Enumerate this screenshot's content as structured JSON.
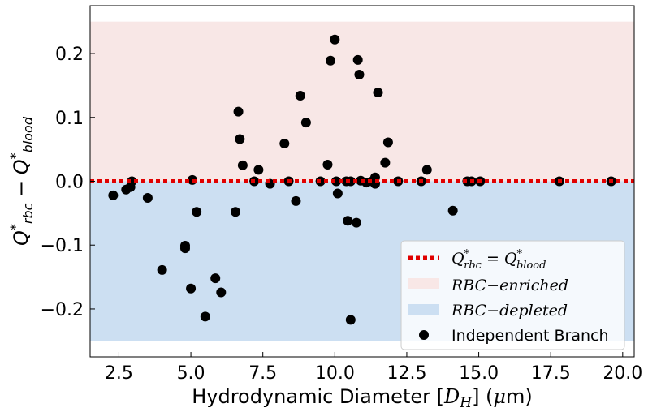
{
  "chart_data": {
    "type": "scatter",
    "xlabel": "Hydrodynamic Diameter [D_H] (μm)",
    "ylabel": "Q*_rbc − Q*_blood",
    "xlim": [
      1.5,
      20.4
    ],
    "ylim": [
      -0.275,
      0.275
    ],
    "xticks": [
      2.5,
      5.0,
      7.5,
      10.0,
      12.5,
      15.0,
      17.5,
      20.0
    ],
    "xtick_labels": [
      "2.5",
      "5.0",
      "7.5",
      "10.0",
      "12.5",
      "15.0",
      "17.5",
      "20.0"
    ],
    "yticks": [
      -0.2,
      -0.1,
      0.0,
      0.1,
      0.2
    ],
    "ytick_labels": [
      "−0.2",
      "−0.1",
      "0.0",
      "0.1",
      "0.2"
    ],
    "grid": false,
    "legend_placement": "lower-right",
    "colors": {
      "reference_line": "#e00000",
      "enriched_band": "#f8e7e6",
      "depleted_band": "#ccdff2",
      "points": "#000000"
    },
    "bands": [
      {
        "name": "RBC−enriched",
        "y_range": [
          0.0,
          0.25
        ]
      },
      {
        "name": "RBC−depleted",
        "y_range": [
          -0.25,
          0.0
        ]
      }
    ],
    "reference_line": {
      "name": "Q*_rbc = Q*_blood",
      "y": 0.0
    },
    "series": [
      {
        "name": "Independent Branch",
        "points": [
          {
            "x": 2.3,
            "y": -0.022
          },
          {
            "x": 2.75,
            "y": -0.013
          },
          {
            "x": 2.9,
            "y": -0.009
          },
          {
            "x": 2.95,
            "y": 0.0
          },
          {
            "x": 3.5,
            "y": -0.026
          },
          {
            "x": 4.0,
            "y": -0.139
          },
          {
            "x": 4.8,
            "y": -0.101
          },
          {
            "x": 4.8,
            "y": -0.105
          },
          {
            "x": 5.0,
            "y": -0.168
          },
          {
            "x": 5.05,
            "y": 0.002
          },
          {
            "x": 5.2,
            "y": -0.048
          },
          {
            "x": 5.5,
            "y": -0.212
          },
          {
            "x": 5.85,
            "y": -0.152
          },
          {
            "x": 6.05,
            "y": -0.174
          },
          {
            "x": 6.55,
            "y": -0.048
          },
          {
            "x": 6.65,
            "y": 0.109
          },
          {
            "x": 6.7,
            "y": 0.066
          },
          {
            "x": 6.8,
            "y": 0.025
          },
          {
            "x": 7.2,
            "y": 0.0
          },
          {
            "x": 7.35,
            "y": 0.018
          },
          {
            "x": 7.75,
            "y": -0.004
          },
          {
            "x": 8.25,
            "y": 0.059
          },
          {
            "x": 8.4,
            "y": 0.0
          },
          {
            "x": 8.65,
            "y": -0.031
          },
          {
            "x": 8.8,
            "y": 0.134
          },
          {
            "x": 9.0,
            "y": 0.092
          },
          {
            "x": 9.5,
            "y": 0.0
          },
          {
            "x": 9.75,
            "y": 0.026
          },
          {
            "x": 9.85,
            "y": 0.189
          },
          {
            "x": 10.0,
            "y": 0.222
          },
          {
            "x": 10.05,
            "y": 0.0
          },
          {
            "x": 10.1,
            "y": -0.019
          },
          {
            "x": 10.4,
            "y": 0.0
          },
          {
            "x": 10.45,
            "y": -0.062
          },
          {
            "x": 10.55,
            "y": -0.217
          },
          {
            "x": 10.55,
            "y": 0.0
          },
          {
            "x": 10.75,
            "y": -0.065
          },
          {
            "x": 10.8,
            "y": 0.19
          },
          {
            "x": 10.85,
            "y": 0.167
          },
          {
            "x": 10.9,
            "y": 0.001
          },
          {
            "x": 11.1,
            "y": -0.002
          },
          {
            "x": 11.3,
            "y": 0.0
          },
          {
            "x": 11.4,
            "y": 0.006
          },
          {
            "x": 11.4,
            "y": -0.004
          },
          {
            "x": 11.5,
            "y": 0.139
          },
          {
            "x": 11.75,
            "y": 0.029
          },
          {
            "x": 11.85,
            "y": 0.061
          },
          {
            "x": 12.2,
            "y": 0.0
          },
          {
            "x": 13.0,
            "y": 0.0
          },
          {
            "x": 13.2,
            "y": 0.018
          },
          {
            "x": 14.1,
            "y": -0.046
          },
          {
            "x": 14.6,
            "y": 0.0
          },
          {
            "x": 14.75,
            "y": 0.0
          },
          {
            "x": 15.05,
            "y": 0.0
          },
          {
            "x": 17.8,
            "y": 0.0
          },
          {
            "x": 19.6,
            "y": 0.0
          }
        ]
      }
    ],
    "legend": [
      {
        "kind": "line",
        "label_parts": [
          "Q",
          "*",
          "rbc",
          " = Q",
          "*",
          "blood"
        ]
      },
      {
        "kind": "band-enriched",
        "label": "RBC−enriched"
      },
      {
        "kind": "band-depleted",
        "label": "RBC−depleted"
      },
      {
        "kind": "marker",
        "label": "Independent Branch"
      }
    ]
  }
}
